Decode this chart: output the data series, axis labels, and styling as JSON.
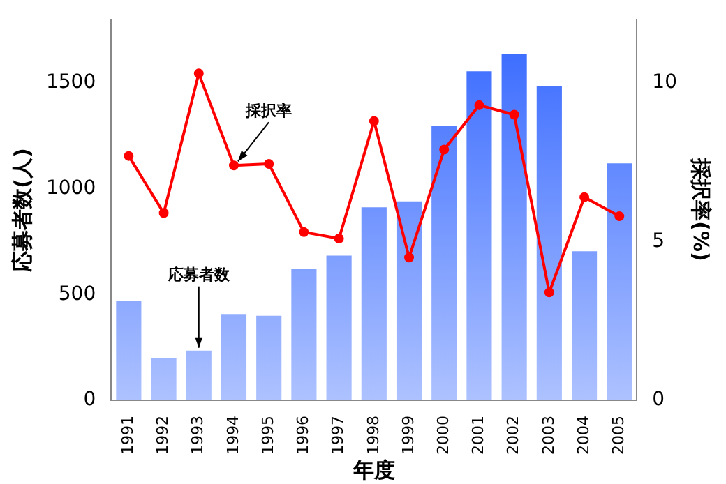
{
  "chart_data": {
    "type": "bar",
    "xlabel": "年度",
    "ylabel": "応募者数(人)",
    "y2label": "採択率(%)",
    "categories": [
      "1991",
      "1992",
      "1993",
      "1994",
      "1995",
      "1996",
      "1997",
      "1998",
      "1999",
      "2000",
      "2001",
      "2002",
      "2003",
      "2004",
      "2005"
    ],
    "series": [
      {
        "color": "#3366ff",
        "values": [
          470,
          200,
          235,
          408,
          400,
          622,
          684,
          912,
          940,
          1299,
          1555,
          1638,
          1486,
          705,
          1120
        ]
      },
      {
        "type": "line",
        "axis": "y2",
        "color": "#ff0000",
        "values": [
          7.7,
          5.9,
          10.3,
          7.4,
          7.45,
          5.3,
          5.1,
          8.8,
          4.5,
          7.9,
          9.3,
          9.0,
          3.4,
          6.4,
          5.8
        ]
      }
    ],
    "ylim": [
      0,
      1800
    ],
    "yticks": [
      0,
      500,
      1000,
      1500
    ],
    "y2lim": [
      0,
      12
    ],
    "y2ticks": [
      0,
      5,
      10
    ],
    "grid": false,
    "legend": false,
    "marker": "circle",
    "line_style": "solid",
    "annotations": [
      {
        "text": "採択率",
        "x": "1994",
        "y": 1110
      },
      {
        "text": "応募者数",
        "x": "1993",
        "y": 235
      }
    ]
  }
}
